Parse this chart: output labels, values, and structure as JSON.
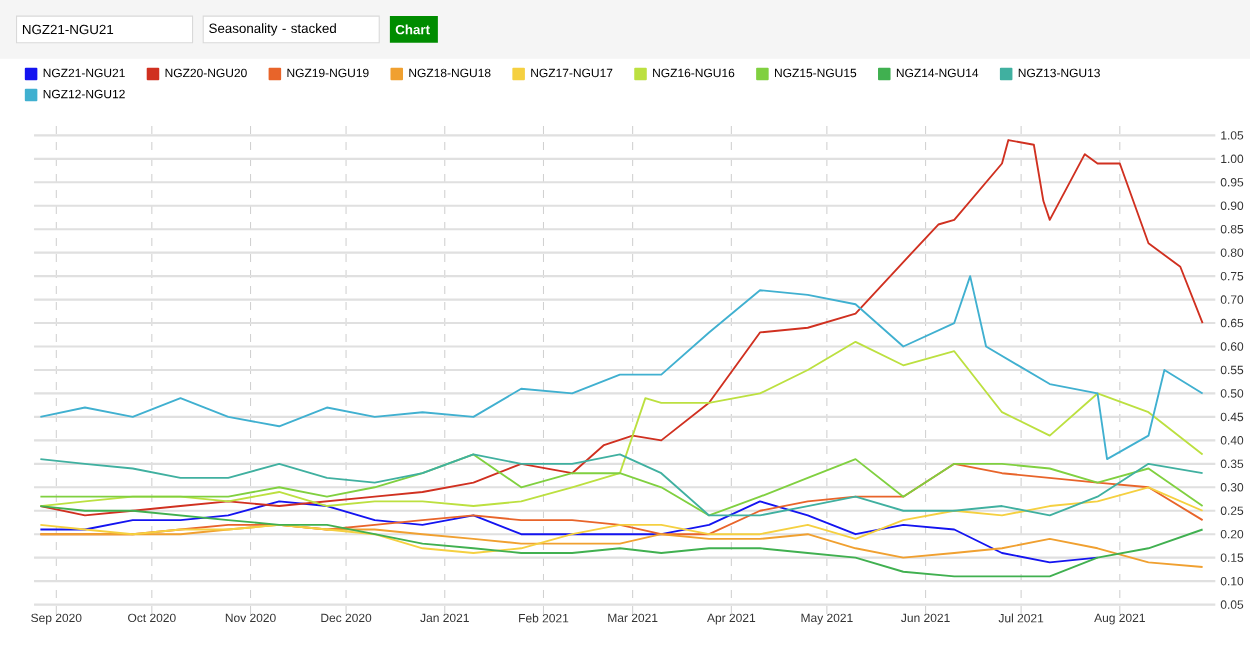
{
  "chart_data": {
    "type": "line",
    "annotations": [
      "NGZ21-NGU21",
      "Seasonality - stacked",
      "Chart"
    ],
    "x": [
      "2020-08-27",
      "2020-09-10",
      "2020-09-25",
      "2020-10-10",
      "2020-10-25",
      "2020-11-10",
      "2020-11-25",
      "2020-12-10",
      "2020-12-25",
      "2021-01-10",
      "2021-01-25",
      "2021-02-10",
      "2021-02-25",
      "2021-03-10",
      "2021-03-25",
      "2021-04-10",
      "2021-04-25",
      "2021-05-10",
      "2021-05-25",
      "2021-06-10",
      "2021-06-25",
      "2021-07-10",
      "2021-07-25",
      "2021-08-10",
      "2021-08-27"
    ],
    "series": [
      {
        "name": "NGZ21-NGU21",
        "color": "#1414f0",
        "values": [
          0.21,
          0.21,
          0.23,
          0.23,
          0.24,
          0.27,
          0.26,
          0.23,
          0.22,
          0.24,
          0.2,
          0.2,
          0.2,
          0.2,
          0.22,
          0.27,
          0.24,
          0.2,
          0.22,
          0.21,
          0.16,
          0.14,
          0.15,
          null,
          null
        ]
      },
      {
        "name": "NGZ20-NGU20",
        "color": "#d03020",
        "x": [
          "2020-08-27",
          "2020-09-10",
          "2020-09-25",
          "2020-10-10",
          "2020-10-25",
          "2020-11-10",
          "2020-11-25",
          "2020-12-10",
          "2020-12-25",
          "2021-01-10",
          "2021-01-25",
          "2021-02-10",
          "2021-02-20",
          "2021-03-01",
          "2021-03-10",
          "2021-03-25",
          "2021-04-10",
          "2021-04-25",
          "2021-05-10",
          "2021-05-25",
          "2021-06-05",
          "2021-06-10",
          "2021-06-25",
          "2021-06-27",
          "2021-07-05",
          "2021-07-08",
          "2021-07-10",
          "2021-07-21",
          "2021-07-25",
          "2021-08-01",
          "2021-08-10",
          "2021-08-20",
          "2021-08-27"
        ],
        "values": [
          0.26,
          0.24,
          0.25,
          0.26,
          0.27,
          0.26,
          0.27,
          0.28,
          0.29,
          0.31,
          0.35,
          0.33,
          0.39,
          0.41,
          0.4,
          0.48,
          0.63,
          0.64,
          0.67,
          0.78,
          0.86,
          0.87,
          0.99,
          1.04,
          1.03,
          0.91,
          0.87,
          1.01,
          0.99,
          0.99,
          0.82,
          0.77,
          0.65
        ]
      },
      {
        "name": "NGZ19-NGU19",
        "color": "#e8642a",
        "values": [
          0.2,
          0.2,
          0.2,
          0.21,
          0.22,
          0.22,
          0.21,
          0.22,
          0.23,
          0.24,
          0.23,
          0.23,
          0.22,
          0.2,
          0.2,
          0.25,
          0.27,
          0.28,
          0.28,
          0.35,
          0.33,
          0.32,
          0.31,
          0.3,
          0.23
        ]
      },
      {
        "name": "NGZ18-NGU18",
        "color": "#f0a030",
        "values": [
          0.2,
          0.2,
          0.2,
          0.2,
          0.21,
          0.22,
          0.21,
          0.21,
          0.2,
          0.19,
          0.18,
          0.18,
          0.18,
          0.2,
          0.19,
          0.19,
          0.2,
          0.17,
          0.15,
          0.16,
          0.17,
          0.19,
          0.17,
          0.14,
          0.13
        ]
      },
      {
        "name": "NGZ17-NGU17",
        "color": "#f5d040",
        "values": [
          0.22,
          0.21,
          0.2,
          0.21,
          0.21,
          0.22,
          0.21,
          0.2,
          0.17,
          0.16,
          0.17,
          0.2,
          0.22,
          0.22,
          0.2,
          0.2,
          0.22,
          0.19,
          0.23,
          0.25,
          0.24,
          0.26,
          0.27,
          0.3,
          0.25
        ]
      },
      {
        "name": "NGZ16-NGU16",
        "color": "#bce040",
        "x": [
          "2020-08-27",
          "2020-09-10",
          "2020-09-25",
          "2020-10-10",
          "2020-10-25",
          "2020-11-10",
          "2020-11-25",
          "2020-12-10",
          "2020-12-25",
          "2021-01-10",
          "2021-01-25",
          "2021-02-10",
          "2021-02-25",
          "2021-03-05",
          "2021-03-10",
          "2021-03-25",
          "2021-04-10",
          "2021-04-25",
          "2021-05-10",
          "2021-05-25",
          "2021-06-10",
          "2021-06-25",
          "2021-07-10",
          "2021-07-25",
          "2021-08-10",
          "2021-08-27"
        ],
        "values": [
          0.26,
          0.27,
          0.28,
          0.28,
          0.27,
          0.29,
          0.26,
          0.27,
          0.27,
          0.26,
          0.27,
          0.3,
          0.33,
          0.49,
          0.48,
          0.48,
          0.5,
          0.55,
          0.61,
          0.56,
          0.59,
          0.46,
          0.41,
          0.5,
          0.46,
          0.37
        ]
      },
      {
        "name": "NGZ15-NGU15",
        "color": "#80d040",
        "values": [
          0.28,
          0.28,
          0.28,
          0.28,
          0.28,
          0.3,
          0.28,
          0.3,
          0.33,
          0.37,
          0.3,
          0.33,
          0.33,
          0.3,
          0.24,
          0.28,
          0.32,
          0.36,
          0.28,
          0.35,
          0.35,
          0.34,
          0.31,
          0.34,
          0.26
        ]
      },
      {
        "name": "NGZ14-NGU14",
        "color": "#40b050",
        "values": [
          0.26,
          0.25,
          0.25,
          0.24,
          0.23,
          0.22,
          0.22,
          0.2,
          0.18,
          0.17,
          0.16,
          0.16,
          0.17,
          0.16,
          0.17,
          0.17,
          0.16,
          0.15,
          0.12,
          0.11,
          0.11,
          0.11,
          0.15,
          0.17,
          0.21
        ]
      },
      {
        "name": "NGZ13-NGU13",
        "color": "#40b0a0",
        "values": [
          0.36,
          0.35,
          0.34,
          0.32,
          0.32,
          0.35,
          0.32,
          0.31,
          0.33,
          0.37,
          0.35,
          0.35,
          0.37,
          0.33,
          0.24,
          0.24,
          0.26,
          0.28,
          0.25,
          0.25,
          0.26,
          0.24,
          0.28,
          0.35,
          0.33
        ]
      },
      {
        "name": "NGZ12-NGU12",
        "color": "#40b0d0",
        "x": [
          "2020-08-27",
          "2020-09-10",
          "2020-09-25",
          "2020-10-10",
          "2020-10-25",
          "2020-11-10",
          "2020-11-25",
          "2020-12-10",
          "2020-12-25",
          "2021-01-10",
          "2021-01-25",
          "2021-02-10",
          "2021-02-25",
          "2021-03-10",
          "2021-03-25",
          "2021-04-10",
          "2021-04-25",
          "2021-05-10",
          "2021-05-25",
          "2021-06-10",
          "2021-06-15",
          "2021-06-20",
          "2021-07-10",
          "2021-07-25",
          "2021-07-28",
          "2021-08-10",
          "2021-08-15",
          "2021-08-27"
        ],
        "values": [
          0.45,
          0.47,
          0.45,
          0.49,
          0.45,
          0.43,
          0.47,
          0.45,
          0.46,
          0.45,
          0.51,
          0.5,
          0.54,
          0.54,
          0.63,
          0.72,
          0.71,
          0.69,
          0.6,
          0.65,
          0.75,
          0.6,
          0.52,
          0.5,
          0.36,
          0.41,
          0.55,
          0.5
        ]
      }
    ],
    "xlim": [
      "2020-08-25",
      "2021-08-31"
    ],
    "xticks": [
      {
        "value": "2020-09-01",
        "label": "Sep 2020"
      },
      {
        "value": "2020-10-01",
        "label": "Oct 2020"
      },
      {
        "value": "2020-11-01",
        "label": "Nov 2020"
      },
      {
        "value": "2020-12-01",
        "label": "Dec 2020"
      },
      {
        "value": "2021-01-01",
        "label": "Jan 2021"
      },
      {
        "value": "2021-02-01",
        "label": "Feb 2021"
      },
      {
        "value": "2021-03-01",
        "label": "Mar 2021"
      },
      {
        "value": "2021-04-01",
        "label": "Apr 2021"
      },
      {
        "value": "2021-05-01",
        "label": "May 2021"
      },
      {
        "value": "2021-06-01",
        "label": "Jun 2021"
      },
      {
        "value": "2021-07-01",
        "label": "Jul 2021"
      },
      {
        "value": "2021-08-01",
        "label": "Aug 2021"
      }
    ],
    "ylim": [
      0.03,
      1.07
    ],
    "yticks": [
      0.05,
      {
        "value": 0.1,
        "label": "0.10"
      },
      0.15,
      {
        "value": 0.2,
        "label": "0.20"
      },
      0.25,
      {
        "value": 0.3,
        "label": "0.30"
      },
      0.35,
      {
        "value": 0.4,
        "label": "0.40"
      },
      0.45,
      {
        "value": 0.5,
        "label": "0.50"
      },
      0.55,
      {
        "value": 0.6,
        "label": "0.60"
      },
      0.65,
      {
        "value": 0.7,
        "label": "0.70"
      },
      0.75,
      {
        "value": 0.8,
        "label": "0.80"
      },
      0.85,
      {
        "value": 0.9,
        "label": "0.90"
      },
      0.95,
      {
        "value": 1.0,
        "label": "1.00"
      },
      1.05
    ],
    "grid": true,
    "legend": "top",
    "marker": "none",
    "line_style": "solid"
  }
}
